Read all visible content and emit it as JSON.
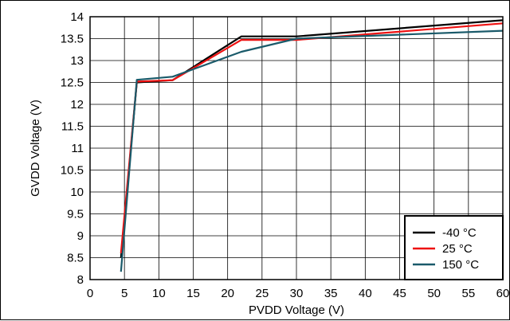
{
  "chart_data": {
    "type": "line",
    "xlabel": "PVDD Voltage (V)",
    "ylabel": "GVDD Voltage (V)",
    "xlim": [
      0,
      60
    ],
    "ylim": [
      8,
      14
    ],
    "x_ticks": [
      "0",
      "5",
      "10",
      "15",
      "20",
      "25",
      "30",
      "35",
      "40",
      "45",
      "50",
      "55",
      "60"
    ],
    "y_ticks": [
      "8",
      "8.5",
      "9",
      "9.5",
      "10",
      "10.5",
      "11",
      "11.5",
      "12",
      "12.5",
      "13",
      "13.5",
      "14"
    ],
    "grid": true,
    "legend_position": "bottom-right",
    "series": [
      {
        "name": "-40 °C",
        "color": "#000000",
        "points": [
          [
            4.5,
            8.5
          ],
          [
            6.8,
            12.5
          ],
          [
            12,
            12.55
          ],
          [
            22,
            13.55
          ],
          [
            30,
            13.55
          ],
          [
            60,
            13.92
          ]
        ]
      },
      {
        "name": "25 °C",
        "color": "#ee1111",
        "points": [
          [
            4.5,
            8.6
          ],
          [
            6.8,
            12.52
          ],
          [
            12,
            12.55
          ],
          [
            22,
            13.47
          ],
          [
            30,
            13.47
          ],
          [
            60,
            13.85
          ]
        ]
      },
      {
        "name": "150 °C",
        "color": "#1a5a6a",
        "points": [
          [
            4.5,
            8.18
          ],
          [
            6.8,
            12.56
          ],
          [
            12,
            12.63
          ],
          [
            22,
            13.2
          ],
          [
            30,
            13.5
          ],
          [
            60,
            13.68
          ]
        ]
      }
    ]
  }
}
